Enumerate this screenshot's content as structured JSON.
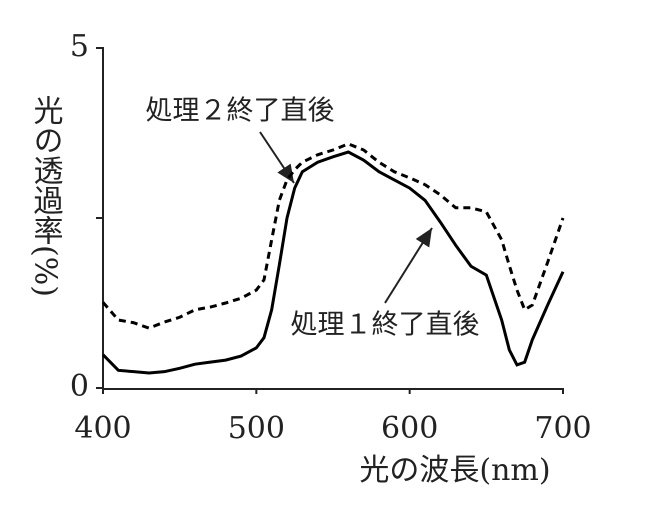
{
  "chart_data": {
    "type": "line",
    "xlabel": "光の波長(nm)",
    "ylabel": "光の透過率(%)",
    "x": [
      400,
      410,
      420,
      430,
      440,
      450,
      460,
      470,
      480,
      490,
      500,
      505,
      510,
      515,
      520,
      525,
      530,
      540,
      550,
      560,
      570,
      580,
      590,
      600,
      610,
      620,
      630,
      640,
      650,
      660,
      665,
      670,
      675,
      680,
      690,
      700
    ],
    "series": [
      {
        "name": "処理1終了直後",
        "color": "#000000",
        "linestyle": "solid",
        "values": [
          0.49,
          0.26,
          0.24,
          0.22,
          0.24,
          0.29,
          0.35,
          0.38,
          0.41,
          0.47,
          0.59,
          0.74,
          1.15,
          1.81,
          2.5,
          2.94,
          3.18,
          3.32,
          3.4,
          3.47,
          3.35,
          3.18,
          3.06,
          2.94,
          2.76,
          2.44,
          2.1,
          1.79,
          1.66,
          1.0,
          0.56,
          0.34,
          0.38,
          0.71,
          1.22,
          1.71
        ]
      },
      {
        "name": "処理2終了直後",
        "color": "#000000",
        "linestyle": "dashed",
        "values": [
          1.26,
          1.0,
          0.96,
          0.88,
          0.97,
          1.04,
          1.15,
          1.19,
          1.25,
          1.32,
          1.44,
          1.59,
          2.18,
          2.76,
          3.06,
          3.21,
          3.32,
          3.43,
          3.5,
          3.59,
          3.5,
          3.32,
          3.18,
          3.09,
          2.99,
          2.84,
          2.65,
          2.65,
          2.59,
          2.18,
          1.8,
          1.44,
          1.15,
          1.22,
          1.85,
          2.5
        ]
      }
    ],
    "annotations": [
      {
        "text": "処理２終了直後"
      },
      {
        "text": "処理１終了直後"
      }
    ],
    "xlim": [
      400,
      700
    ],
    "xticks": [
      400,
      500,
      600,
      700
    ],
    "ylim": [
      0,
      5
    ],
    "yticks": [
      0,
      5
    ],
    "yminorticks": [
      2.5
    ]
  }
}
